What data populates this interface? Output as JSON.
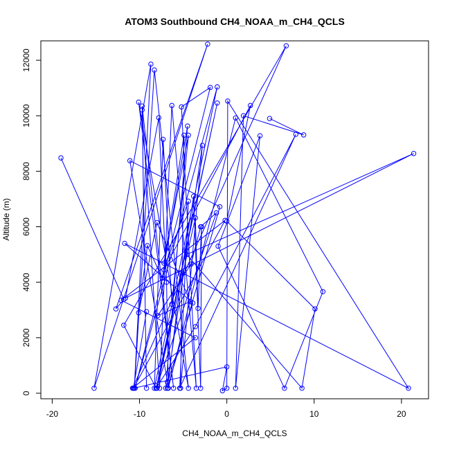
{
  "chart_data": {
    "type": "scatter",
    "title": "ATOM3 Southbound CH4_NOAA_m_CH4_QCLS",
    "xlabel": "CH4_NOAA_m_CH4_QCLS",
    "ylabel": "Altitude (m)",
    "xlim": [
      -21.3,
      23.1
    ],
    "ylim": [
      -200,
      12700
    ],
    "xticks": [
      -20,
      -10,
      0,
      10,
      20
    ],
    "yticks": [
      0,
      2000,
      4000,
      6000,
      8000,
      10000,
      12000
    ],
    "grid": false,
    "legend": "none",
    "style": "points connected by lines in measurement order",
    "colors": {
      "series": "#0000ff",
      "axis": "#000000"
    },
    "series": [
      {
        "points": [
          [
            -19.0,
            8480
          ],
          [
            -11.8,
            3380
          ],
          [
            -12.7,
            3040
          ],
          [
            -2.2,
            12580
          ],
          [
            -15.2,
            180
          ],
          [
            -8.7,
            11860
          ],
          [
            -10.6,
            180
          ],
          [
            -8.3,
            11650
          ],
          [
            -4.4,
            180
          ],
          [
            -10.1,
            10490
          ],
          [
            -6.1,
            180
          ],
          [
            -9.7,
            10350
          ],
          [
            -9.2,
            180
          ],
          [
            -9.7,
            10210
          ],
          [
            -7.7,
            180
          ],
          [
            -6.3,
            10370
          ],
          [
            -3.5,
            180
          ],
          [
            -5.2,
            10320
          ],
          [
            -1.9,
            11020
          ],
          [
            -10.5,
            180
          ],
          [
            -1.1,
            11040
          ],
          [
            -8.3,
            180
          ],
          [
            -7.3,
            9150
          ],
          [
            -6.3,
            3210
          ],
          [
            -4.4,
            9300
          ],
          [
            -7.2,
            4690
          ],
          [
            -4.9,
            9300
          ],
          [
            -5.3,
            180
          ],
          [
            -2.8,
            8930
          ],
          [
            -6.8,
            400
          ],
          [
            -11.1,
            8380
          ],
          [
            -0.8,
            6720
          ],
          [
            -6.8,
            180
          ],
          [
            -5.2,
            4350
          ],
          [
            -3.8,
            7100
          ],
          [
            -3.0,
            180
          ],
          [
            -2.9,
            6000
          ],
          [
            -3.3,
            3060
          ],
          [
            -3.6,
            6320
          ],
          [
            -8.0,
            180
          ],
          [
            -1.1,
            10460
          ],
          [
            -8.1,
            180
          ],
          [
            -1.2,
            6500
          ],
          [
            -3.0,
            6000
          ],
          [
            -4.1,
            4650
          ],
          [
            -7.9,
            2800
          ],
          [
            -4.2,
            3300
          ],
          [
            -8.0,
            6150
          ],
          [
            -10.1,
            2900
          ],
          [
            -9.1,
            5320
          ],
          [
            -7.4,
            4150
          ],
          [
            -4.5,
            9630
          ],
          [
            -7.0,
            180
          ],
          [
            -3.9,
            3250
          ],
          [
            -11.7,
            5400
          ],
          [
            20.8,
            180
          ],
          [
            0.1,
            10530
          ],
          [
            0.0,
            180
          ],
          [
            -0.5,
            90
          ],
          [
            0.0,
            950
          ],
          [
            -10.7,
            180
          ],
          [
            -9.2,
            2940
          ],
          [
            -10.7,
            180
          ],
          [
            -0.2,
            6230
          ],
          [
            -12.1,
            3350
          ],
          [
            -3.6,
            2000
          ],
          [
            -10.8,
            180
          ],
          [
            6.8,
            12520
          ],
          [
            -11.8,
            2450
          ],
          [
            -8.1,
            180
          ],
          [
            -3.6,
            2400
          ],
          [
            7.9,
            9330
          ],
          [
            -5.4,
            180
          ],
          [
            -4.4,
            6920
          ],
          [
            -7.2,
            4450
          ],
          [
            2.7,
            10370
          ],
          [
            0.0,
            6200
          ],
          [
            10.1,
            3040
          ],
          [
            8.6,
            180
          ],
          [
            -4.6,
            5000
          ],
          [
            21.4,
            8640
          ],
          [
            -11.6,
            3430
          ],
          [
            -7.8,
            9930
          ],
          [
            -6.9,
            4000
          ],
          [
            -6.7,
            180
          ],
          [
            1.0,
            9920
          ],
          [
            11.0,
            3660
          ],
          [
            6.6,
            180
          ],
          [
            -1.0,
            5300
          ],
          [
            3.8,
            9280
          ],
          [
            1.0,
            180
          ],
          [
            1.9,
            10000
          ],
          [
            8.8,
            9310
          ],
          [
            4.9,
            9900
          ]
        ]
      }
    ]
  }
}
